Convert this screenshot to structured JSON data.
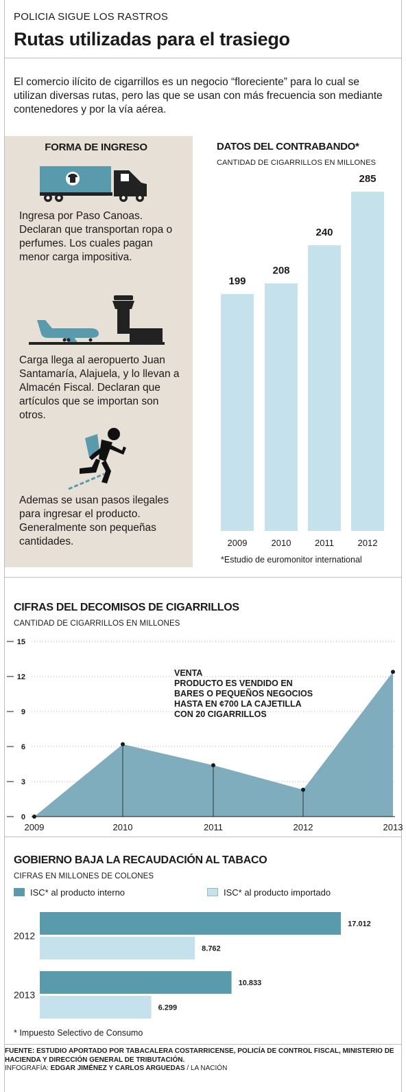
{
  "kicker": "POLICIA SIGUE LOS RASTROS",
  "headline": "Rutas utilizadas para el trasiego",
  "intro": "El comercio ilícito de cigarrillos es un negocio “floreciente” para lo cual se utilizan diversas rutas, pero las que se usan con más frecuencia son mediante contenedores y por la vía aérea.",
  "forma": {
    "title": "FORMA DE INGRESO",
    "items": [
      {
        "icon": "truck-icon",
        "text": "Ingresa por Paso Canoas. Declaran que transportan ropa o perfumes. Los cuales pagan menor carga impositiva."
      },
      {
        "icon": "airplane-icon",
        "text": "Carga llega al aeropuerto Juan Santamaría, Alajuela, y lo llevan a Almacén Fiscal. Declaran que artículos que se importan son otros."
      },
      {
        "icon": "running-person-icon",
        "text": "Ademas se usan pasos ilegales para ingresar el producto. Generalmente son pequeñas cantidades."
      }
    ]
  },
  "colors": {
    "bar_light": "#c5e2ec",
    "bar_dark": "#5a9aad",
    "area": "#7fadbe",
    "panel": "#e6e0d7"
  },
  "chart_data": [
    {
      "type": "bar",
      "title": "DATOS DEL CONTRABANDO*",
      "subtitle": "CANTIDAD DE CIGARRILLOS EN MILLONES",
      "categories": [
        "2009",
        "2010",
        "2011",
        "2012"
      ],
      "values": [
        199,
        208,
        240,
        285
      ],
      "value_labels": [
        "199",
        "208",
        "240",
        "285"
      ],
      "note": "*Estudio de euromonitor international"
    },
    {
      "type": "area",
      "title": "CIFRAS DEL DECOMISOS DE CIGARRILLOS",
      "subtitle": "CANTIDAD DE CIGARRILLOS EN MILLONES",
      "x": [
        "2009",
        "2010",
        "2011",
        "2012",
        "2013"
      ],
      "values": [
        0,
        6.2,
        4.4,
        2.3,
        12.4
      ],
      "ylim": [
        0,
        15
      ],
      "yticks": [
        "0",
        "3",
        "6",
        "9",
        "12",
        "15"
      ],
      "grid": true,
      "annotation": [
        "VENTA",
        "PRODUCTO ES VENDIDO EN",
        "BARES O PEQUEÑOS NEGOCIOS",
        "HASTA EN ¢700 LA CAJETILLA",
        "CON 20 CIGARRILLOS"
      ]
    },
    {
      "type": "bar",
      "orientation": "horizontal",
      "title": "GOBIERNO BAJA LA RECAUDACIÓN AL TABACO",
      "subtitle": "CIFRAS EN MILLONES DE COLONES",
      "categories": [
        "2012",
        "2013"
      ],
      "series": [
        {
          "name": "ISC* al producto interno",
          "values": [
            17012,
            10833
          ],
          "labels": [
            "17.012",
            "10.833"
          ]
        },
        {
          "name": "ISC* al producto importado",
          "values": [
            8762,
            6299
          ],
          "labels": [
            "8.762",
            "6.299"
          ]
        }
      ],
      "note": "* Impuesto Selectivo de Consumo"
    }
  ],
  "footer": {
    "fuente_label": "FUENTE: ",
    "fuente": "ESTUDIO APORTADO POR TABACALERA COSTARRICENSE, POLICÍA DE CONTROL FISCAL, MINISTERIO DE HACIENDA Y DIRECCIÓN GENERAL DE TRIBUTACIÓN.",
    "infografia_label": "INFOGRAFÍA: ",
    "autores": "EDGAR JIMÉNEZ Y CARLOS ARGUEDAS",
    "medio": " / LA NACIÓN"
  }
}
